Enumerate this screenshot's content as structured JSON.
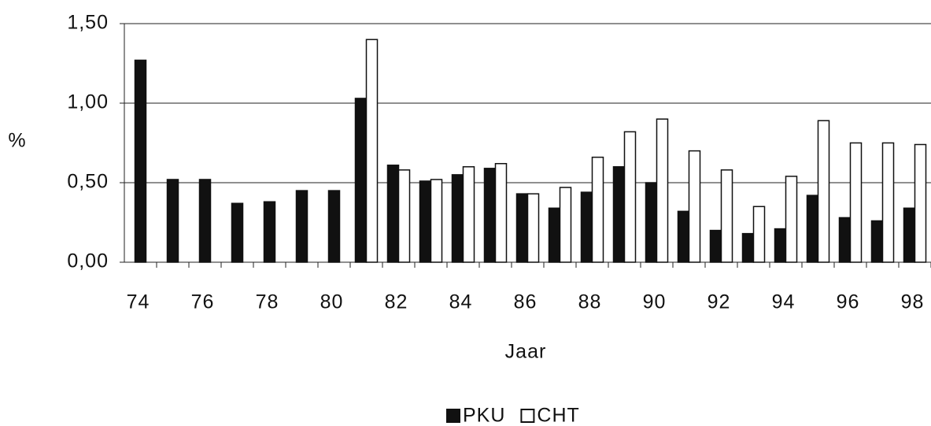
{
  "chart_data": {
    "type": "bar",
    "y_label": "%",
    "x_label": "Jaar",
    "categories": [
      "74",
      null,
      "76",
      null,
      "78",
      null,
      "80",
      null,
      "82",
      null,
      "84",
      null,
      "86",
      null,
      "88",
      null,
      "90",
      null,
      "92",
      null,
      "94",
      null,
      "96",
      null,
      "98"
    ],
    "series": [
      {
        "name": "PKU",
        "color": "#111111",
        "values": [
          1.27,
          0.52,
          0.52,
          0.37,
          0.38,
          0.45,
          0.45,
          1.03,
          0.61,
          0.51,
          0.55,
          0.59,
          0.43,
          0.34,
          0.44,
          0.6,
          0.5,
          0.32,
          0.2,
          0.18,
          0.21,
          0.42,
          0.28,
          0.26,
          0.34
        ]
      },
      {
        "name": "CHT",
        "color": "#ffffff",
        "values": [
          null,
          null,
          null,
          null,
          null,
          null,
          null,
          1.4,
          0.58,
          0.52,
          0.6,
          0.62,
          0.43,
          0.47,
          0.66,
          0.82,
          0.9,
          0.7,
          0.58,
          0.35,
          0.54,
          0.89,
          0.75,
          0.75,
          0.74
        ]
      }
    ],
    "ylim": [
      0,
      1.5
    ],
    "yticks": [
      {
        "value": 0,
        "label": "0,00"
      },
      {
        "value": 0.5,
        "label": "0,50"
      },
      {
        "value": 1,
        "label": "1,00"
      },
      {
        "value": 1.5,
        "label": "1,50"
      }
    ],
    "grid": true,
    "legend": "bottom"
  }
}
